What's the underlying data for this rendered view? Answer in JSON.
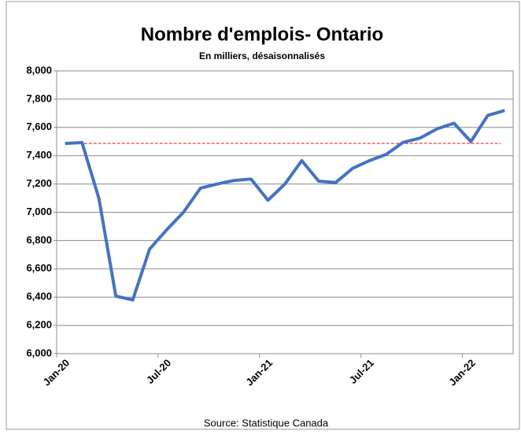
{
  "chart_data": {
    "type": "line",
    "title": "Nombre d'emplois- Ontario",
    "subtitle": "En milliers, désaisonnalisés",
    "source": "Source: Statistique Canada",
    "categories": [
      "Jan-20",
      null,
      null,
      null,
      null,
      null,
      "Jul-20",
      null,
      null,
      null,
      null,
      null,
      "Jan-21",
      null,
      null,
      null,
      null,
      null,
      "Jul-21",
      null,
      null,
      null,
      null,
      null,
      "Jan-22",
      null,
      null
    ],
    "series": [
      {
        "name": "Ontario",
        "color": "#4472c4",
        "values": [
          7487,
          7493,
          7097,
          6407,
          6380,
          6740,
          6875,
          7000,
          7170,
          7200,
          7225,
          7235,
          7085,
          7200,
          7365,
          7220,
          7210,
          7310,
          7365,
          7410,
          7495,
          7525,
          7590,
          7630,
          7500,
          7685,
          7720
        ]
      }
    ],
    "reference_line": {
      "value": 7487,
      "color": "#e0302a"
    },
    "ylim": [
      6000,
      8000
    ],
    "yticks": [
      {
        "value": 6000,
        "label": "6,000"
      },
      {
        "value": 6200,
        "label": "6,200"
      },
      {
        "value": 6400,
        "label": "6,400"
      },
      {
        "value": 6600,
        "label": "6,600"
      },
      {
        "value": 6800,
        "label": "6,800"
      },
      {
        "value": 7000,
        "label": "7,000"
      },
      {
        "value": 7200,
        "label": "7,200"
      },
      {
        "value": 7400,
        "label": "7,400"
      },
      {
        "value": 7600,
        "label": "7,600"
      },
      {
        "value": 7800,
        "label": "7,800"
      },
      {
        "value": 8000,
        "label": "8,000"
      }
    ],
    "grid": true
  }
}
